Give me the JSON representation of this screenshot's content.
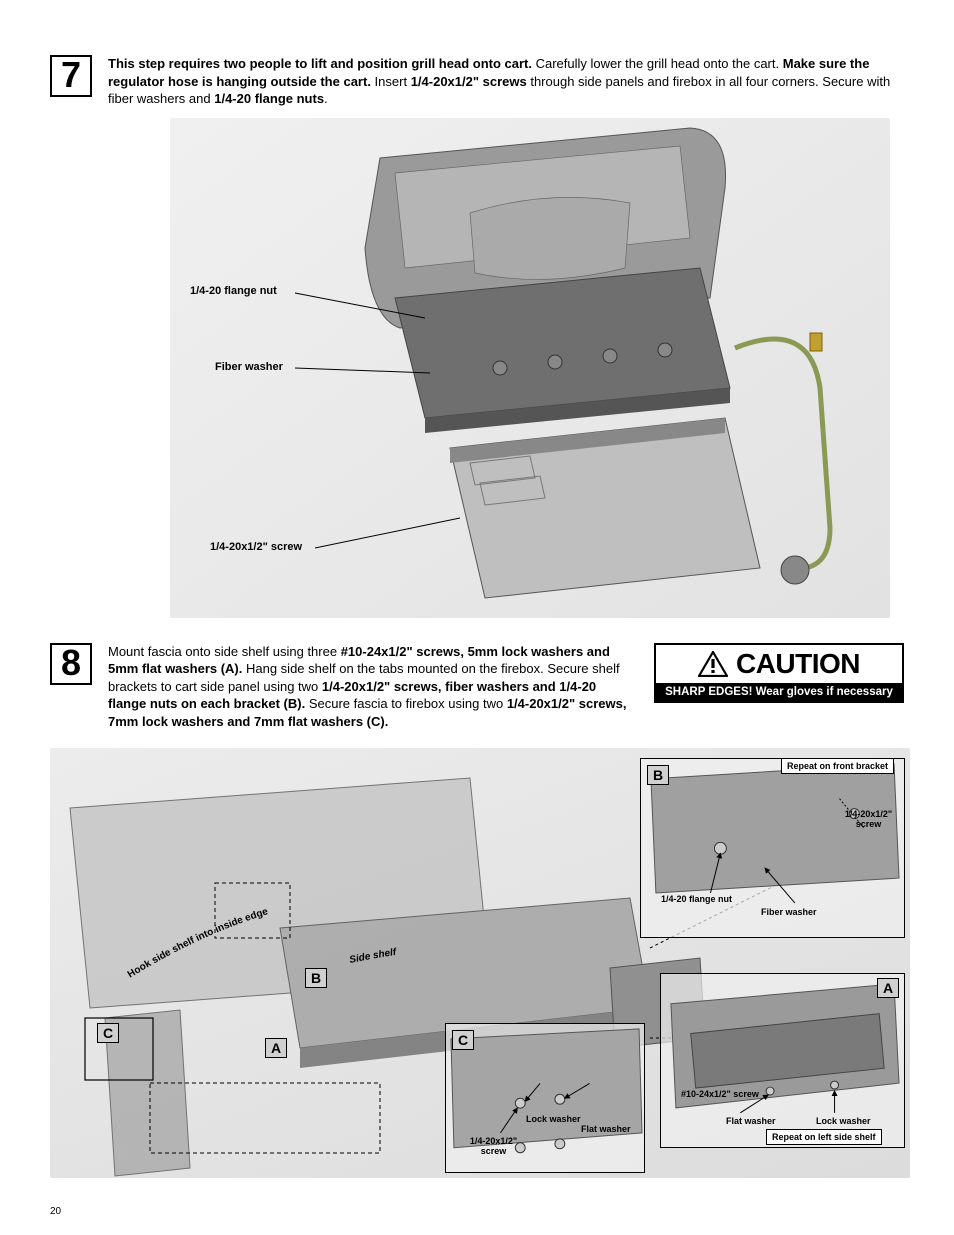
{
  "page_number": "20",
  "step7": {
    "number": "7",
    "text_parts": [
      {
        "t": "This step requires two people to lift and position grill head onto cart.",
        "b": true
      },
      {
        "t": " Carefully lower the grill head onto the cart. ",
        "b": false
      },
      {
        "t": "Make sure the regulator hose is hanging outside the cart.",
        "b": true
      },
      {
        "t": " Insert ",
        "b": false
      },
      {
        "t": "1/4-20x1/2\" screws",
        "b": true
      },
      {
        "t": " through side panels and firebox in all four corners. Secure with fiber washers and ",
        "b": false
      },
      {
        "t": "1/4-20 flange nuts",
        "b": true
      },
      {
        "t": ".",
        "b": false
      }
    ],
    "labels": {
      "flange_nut": "1/4-20 flange nut",
      "fiber_washer": "Fiber washer",
      "screw": "1/4-20x1/2\" screw"
    }
  },
  "step8": {
    "number": "8",
    "text_parts": [
      {
        "t": "Mount fascia onto side shelf using three ",
        "b": false
      },
      {
        "t": "#10-24x1/2\" screws, 5mm lock washers and 5mm flat washers (A).",
        "b": true
      },
      {
        "t": " Hang side shelf on the tabs mounted on the firebox. Secure shelf brackets to cart side panel using two ",
        "b": false
      },
      {
        "t": "1/4-20x1/2\" screws, fiber washers and 1/4-20 flange nuts on each bracket (B).",
        "b": true
      },
      {
        "t": " Secure fascia to firebox using two ",
        "b": false
      },
      {
        "t": "1/4-20x1/2\" screws, 7mm lock washers and 7mm flat washers (C).",
        "b": true
      }
    ],
    "caution": {
      "title": "CAUTION",
      "sub": "SHARP EDGES! Wear gloves if necessary"
    },
    "labels": {
      "hook": "Hook side shelf into inside edge",
      "side_shelf": "Side shelf",
      "lock_washer": "Lock washer",
      "flat_washer": "Flat washer",
      "screw_1420": "1/4-20x1/2\" screw",
      "screw_1024": "#10-24x1/2\" screw",
      "flange_nut": "1/4-20 flange nut",
      "fiber_washer": "Fiber washer",
      "repeat_front": "Repeat on front bracket",
      "repeat_left": "Repeat on left side shelf",
      "A": "A",
      "B": "B",
      "C": "C"
    }
  },
  "colors": {
    "grill_light": "#bfbfbf",
    "grill_mid": "#9a9a9a",
    "grill_dark": "#6f6f6f",
    "grill_shadow": "#555555",
    "hose": "#8a9a55",
    "brass": "#c0a030"
  }
}
